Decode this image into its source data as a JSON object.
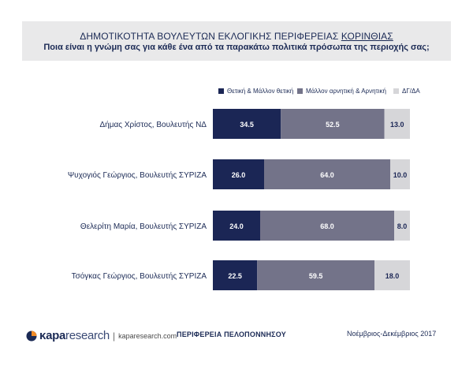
{
  "header": {
    "title_main": "ΔΗΜΟΤΙΚΟΤΗΤΑ ΒΟΥΛΕΥΤΩΝ ΕΚΛΟΓΙΚΗΣ ΠΕΡΙΦΕΡΕΙΑΣ ",
    "title_region": "ΚΟΡΙΝΘΙΑΣ",
    "subtitle": "Ποια είναι η γνώμη σας για κάθε ένα από τα παρακάτω πολιτικά πρόσωπα της περιοχής σας;"
  },
  "chart_data": {
    "type": "bar",
    "orientation": "horizontal",
    "stacked": true,
    "categories": [
      "Δήμας Χρίστος, Βουλευτής ΝΔ",
      "Ψυχογιός Γεώργιος, Βουλευτής ΣΥΡΙΖΑ",
      "Θελερίτη Μαρία, Βουλευτής ΣΥΡΙΖΑ",
      "Τσόγκας Γεώργιος, Βουλευτής ΣΥΡΙΖΑ"
    ],
    "series": [
      {
        "name": "Θετική & Μάλλον θετική",
        "values": [
          34.5,
          26.0,
          24.0,
          22.5
        ],
        "color": "#1b2655",
        "label_color": "#ffffff"
      },
      {
        "name": "Μάλλον αρνητική & Αρνητική",
        "values": [
          52.5,
          64.0,
          68.0,
          59.5
        ],
        "color": "#737389",
        "label_color": "#ffffff"
      },
      {
        "name": "ΔΓ/ΔΑ",
        "values": [
          13.0,
          10.0,
          8.0,
          18.0
        ],
        "color": "#d6d6d9",
        "label_color": "#1b2655"
      }
    ],
    "value_labels": [
      [
        "34.5",
        "52.5",
        "13.0"
      ],
      [
        "26.0",
        "64.0",
        "10.0"
      ],
      [
        "24.0",
        "68.0",
        "8.0"
      ],
      [
        "22.5",
        "59.5",
        "18.0"
      ]
    ],
    "xlim": [
      0,
      100
    ],
    "grid": false,
    "legend_position": "top-right"
  },
  "footer": {
    "brand_main": "κapa",
    "brand_light": "research",
    "separator": "|",
    "url": "kaparesearch.com",
    "region": "ΠΕΡΙΦΕΡΕΙΑ ΠΕΛΟΠΟΝΝΗΣΟΥ",
    "date": "Νοέμβριος-Δεκέμβριος 2017"
  }
}
